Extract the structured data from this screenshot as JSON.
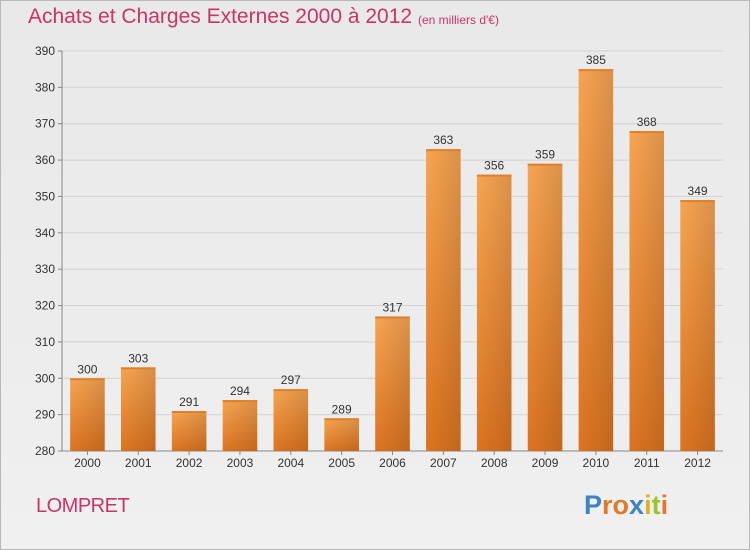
{
  "chart_data": {
    "type": "bar",
    "title": "Achats et Charges Externes 2000 à 2012",
    "subtitle": "(en milliers d'€)",
    "categories": [
      "2000",
      "2001",
      "2002",
      "2003",
      "2004",
      "2005",
      "2006",
      "2007",
      "2008",
      "2009",
      "2010",
      "2011",
      "2012"
    ],
    "values": [
      300,
      303,
      291,
      294,
      297,
      289,
      317,
      363,
      356,
      359,
      385,
      368,
      349
    ],
    "ylim": [
      280,
      390
    ],
    "yticks": [
      280,
      290,
      300,
      310,
      320,
      330,
      340,
      350,
      360,
      370,
      380,
      390
    ],
    "grid": true,
    "bar_color": "#f0923a"
  },
  "footer": {
    "location": "LOMPRET",
    "logo_letters": [
      "P",
      "r",
      "o",
      "x",
      "i",
      "t",
      "i"
    ],
    "logo_colors": [
      "#3c84c4",
      "#e07a2a",
      "#e07a2a",
      "#3c84c4",
      "#e0b020",
      "#a0c030",
      "#e07a2a"
    ]
  }
}
